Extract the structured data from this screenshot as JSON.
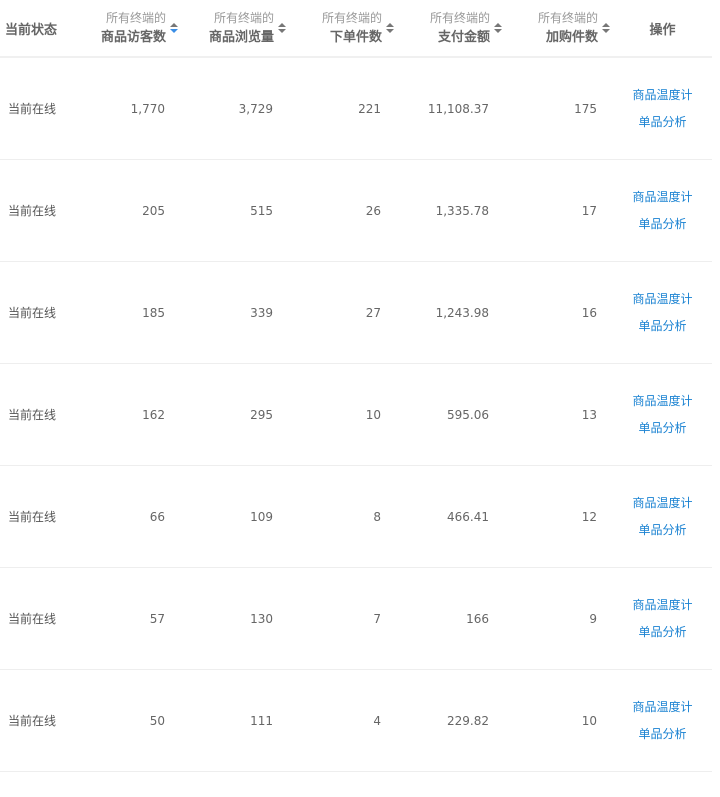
{
  "header": {
    "status": "当前状态",
    "prefix": "所有终端的",
    "columns": [
      "商品访客数",
      "商品浏览量",
      "下单件数",
      "支付金额",
      "加购件数"
    ],
    "action": "操作",
    "active_sort_column": 0,
    "accent": "#3a8ee6",
    "link_color": "#1a82d2"
  },
  "rows": [
    {
      "status": "当前在线",
      "values": [
        "1,770",
        "3,729",
        "221",
        "11,108.37",
        "175"
      ]
    },
    {
      "status": "当前在线",
      "values": [
        "205",
        "515",
        "26",
        "1,335.78",
        "17"
      ]
    },
    {
      "status": "当前在线",
      "values": [
        "185",
        "339",
        "27",
        "1,243.98",
        "16"
      ]
    },
    {
      "status": "当前在线",
      "values": [
        "162",
        "295",
        "10",
        "595.06",
        "13"
      ]
    },
    {
      "status": "当前在线",
      "values": [
        "66",
        "109",
        "8",
        "466.41",
        "12"
      ]
    },
    {
      "status": "当前在线",
      "values": [
        "57",
        "130",
        "7",
        "166",
        "9"
      ]
    },
    {
      "status": "当前在线",
      "values": [
        "50",
        "111",
        "4",
        "229.82",
        "10"
      ]
    }
  ],
  "actions": {
    "thermometer": "商品温度计",
    "analysis": "单品分析"
  }
}
